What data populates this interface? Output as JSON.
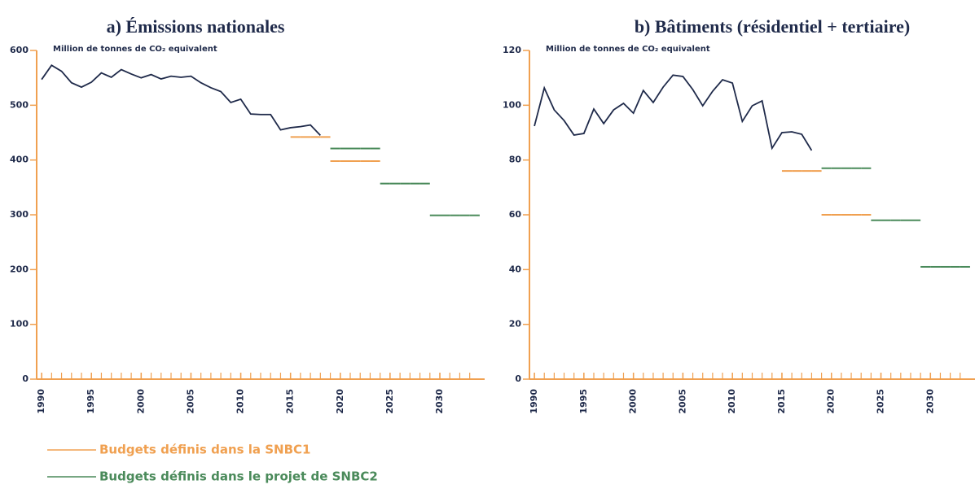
{
  "chart_data": [
    {
      "type": "line",
      "title": "a)  Émissions nationales",
      "y_label": "Million de tonnes de CO₂ equivalent",
      "x": [
        1990,
        1991,
        1992,
        1993,
        1994,
        1995,
        1996,
        1997,
        1998,
        1999,
        2000,
        2001,
        2002,
        2003,
        2004,
        2005,
        2006,
        2007,
        2008,
        2009,
        2010,
        2011,
        2012,
        2013,
        2014,
        2015,
        2016,
        2017,
        2018,
        2019,
        2020,
        2021,
        2022,
        2023,
        2024,
        2025,
        2026,
        2027,
        2028,
        2029,
        2030,
        2031,
        2032,
        2033
      ],
      "xlim": [
        1989.5,
        2034.5
      ],
      "xticks": [
        1990,
        1995,
        2000,
        2005,
        2010,
        2015,
        2020,
        2025,
        2030
      ],
      "ylim": [
        0,
        600
      ],
      "yticks": [
        0,
        100,
        200,
        300,
        400,
        500,
        600
      ],
      "axis_color": "#f0a050",
      "series": [
        {
          "color": "#1f2a4a",
          "values": [
            547,
            573,
            562,
            541,
            533,
            542,
            559,
            551,
            565,
            557,
            550,
            556,
            548,
            553,
            551,
            553,
            541,
            532,
            525,
            505,
            511,
            484,
            483,
            483,
            455,
            459,
            461,
            464,
            445,
            null,
            null,
            null,
            null,
            null,
            null,
            null,
            null,
            null,
            null,
            null,
            null,
            null,
            null,
            null
          ]
        },
        {
          "name": "Budgets définis dans la SNBC1",
          "color": "#f0a050",
          "segments": true,
          "values": [
            null,
            null,
            null,
            null,
            null,
            null,
            null,
            null,
            null,
            null,
            null,
            null,
            null,
            null,
            null,
            null,
            null,
            null,
            null,
            null,
            null,
            null,
            null,
            null,
            null,
            442,
            442,
            442,
            442,
            398,
            398,
            398,
            398,
            398,
            null,
            null,
            null,
            null,
            null,
            null,
            null,
            null,
            null,
            null
          ]
        },
        {
          "name": "Budgets définis dans le projet de SNBC2",
          "color": "#4a8a5a",
          "segments": true,
          "values": [
            null,
            null,
            null,
            null,
            null,
            null,
            null,
            null,
            null,
            null,
            null,
            null,
            null,
            null,
            null,
            null,
            null,
            null,
            null,
            null,
            null,
            null,
            null,
            null,
            null,
            null,
            null,
            null,
            null,
            421,
            421,
            421,
            421,
            421,
            357,
            357,
            357,
            357,
            357,
            299,
            299,
            299,
            299,
            299
          ]
        }
      ]
    },
    {
      "type": "line",
      "title": "b)  Bâtiments (résidentiel + tertiaire)",
      "y_label": "Million de tonnes de CO₂ equivalent",
      "x": [
        1990,
        1991,
        1992,
        1993,
        1994,
        1995,
        1996,
        1997,
        1998,
        1999,
        2000,
        2001,
        2002,
        2003,
        2004,
        2005,
        2006,
        2007,
        2008,
        2009,
        2010,
        2011,
        2012,
        2013,
        2014,
        2015,
        2016,
        2017,
        2018,
        2019,
        2020,
        2021,
        2022,
        2023,
        2024,
        2025,
        2026,
        2027,
        2028,
        2029,
        2030,
        2031,
        2032,
        2033
      ],
      "xlim": [
        1989.5,
        2034.5
      ],
      "xticks": [
        1990,
        1995,
        2000,
        2005,
        2010,
        2015,
        2020,
        2025,
        2030
      ],
      "ylim": [
        0,
        120
      ],
      "yticks": [
        0,
        20,
        40,
        60,
        80,
        100,
        120
      ],
      "axis_color": "#f0a050",
      "series": [
        {
          "color": "#1f2a4a",
          "values": [
            92.4,
            106.3,
            98.3,
            94.4,
            89.1,
            89.7,
            98.6,
            93.3,
            98.3,
            100.7,
            97.1,
            105.4,
            101,
            106.6,
            111,
            110.5,
            105.7,
            99.8,
            105.1,
            109.3,
            108.1,
            94.1,
            99.8,
            101.6,
            84.3,
            90,
            90.3,
            89.4,
            83.5,
            null,
            null,
            null,
            null,
            null,
            null,
            null,
            null,
            null,
            null,
            null,
            null,
            null,
            null,
            null
          ]
        },
        {
          "color": "#f0a050",
          "segments": true,
          "values": [
            null,
            null,
            null,
            null,
            null,
            null,
            null,
            null,
            null,
            null,
            null,
            null,
            null,
            null,
            null,
            null,
            null,
            null,
            null,
            null,
            null,
            null,
            null,
            null,
            null,
            76,
            76,
            76,
            76,
            60,
            60,
            60,
            60,
            60,
            null,
            null,
            null,
            null,
            null,
            null,
            null,
            null,
            null,
            null
          ]
        },
        {
          "color": "#4a8a5a",
          "segments": true,
          "values": [
            null,
            null,
            null,
            null,
            null,
            null,
            null,
            null,
            null,
            null,
            null,
            null,
            null,
            null,
            null,
            null,
            null,
            null,
            null,
            null,
            null,
            null,
            null,
            null,
            null,
            null,
            null,
            null,
            null,
            77,
            77,
            77,
            77,
            77,
            58,
            58,
            58,
            58,
            58,
            41,
            41,
            41,
            41,
            41
          ]
        }
      ]
    }
  ]
}
